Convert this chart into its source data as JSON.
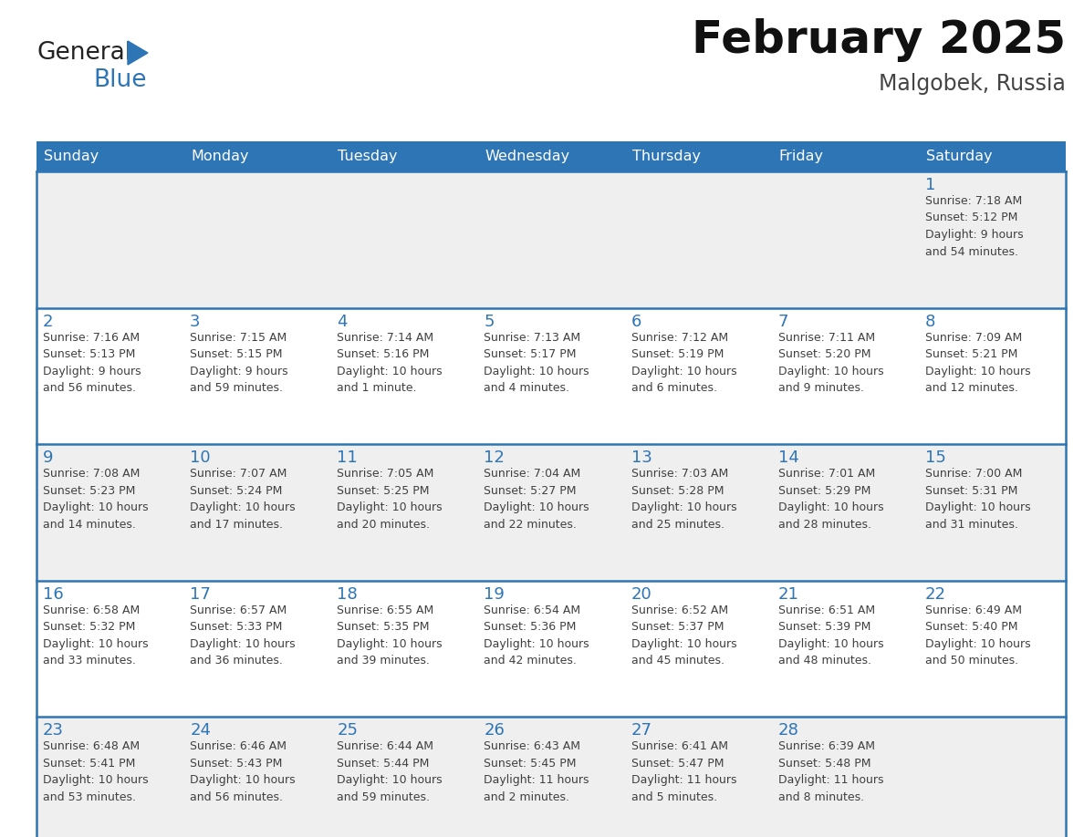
{
  "title": "February 2025",
  "subtitle": "Malgobek, Russia",
  "header_color": "#2E75B6",
  "header_text_color": "#FFFFFF",
  "bg_color": "#FFFFFF",
  "cell_bg_row0": "#EFEFEF",
  "cell_bg_row1": "#FFFFFF",
  "cell_bg_row2": "#EFEFEF",
  "cell_bg_row3": "#FFFFFF",
  "cell_bg_row4": "#EFEFEF",
  "days_of_week": [
    "Sunday",
    "Monday",
    "Tuesday",
    "Wednesday",
    "Thursday",
    "Friday",
    "Saturday"
  ],
  "day_number_color": "#2E75B6",
  "text_color": "#404040",
  "border_color": "#2E75B6",
  "logo_general_color": "#222222",
  "logo_blue_color": "#2E75B6",
  "logo_triangle_color": "#2E75B6",
  "calendar": [
    [
      null,
      null,
      null,
      null,
      null,
      null,
      {
        "day": "1",
        "sunrise": "7:18 AM",
        "sunset": "5:12 PM",
        "daylight": "9 hours\nand 54 minutes."
      }
    ],
    [
      {
        "day": "2",
        "sunrise": "7:16 AM",
        "sunset": "5:13 PM",
        "daylight": "9 hours\nand 56 minutes."
      },
      {
        "day": "3",
        "sunrise": "7:15 AM",
        "sunset": "5:15 PM",
        "daylight": "9 hours\nand 59 minutes."
      },
      {
        "day": "4",
        "sunrise": "7:14 AM",
        "sunset": "5:16 PM",
        "daylight": "10 hours\nand 1 minute."
      },
      {
        "day": "5",
        "sunrise": "7:13 AM",
        "sunset": "5:17 PM",
        "daylight": "10 hours\nand 4 minutes."
      },
      {
        "day": "6",
        "sunrise": "7:12 AM",
        "sunset": "5:19 PM",
        "daylight": "10 hours\nand 6 minutes."
      },
      {
        "day": "7",
        "sunrise": "7:11 AM",
        "sunset": "5:20 PM",
        "daylight": "10 hours\nand 9 minutes."
      },
      {
        "day": "8",
        "sunrise": "7:09 AM",
        "sunset": "5:21 PM",
        "daylight": "10 hours\nand 12 minutes."
      }
    ],
    [
      {
        "day": "9",
        "sunrise": "7:08 AM",
        "sunset": "5:23 PM",
        "daylight": "10 hours\nand 14 minutes."
      },
      {
        "day": "10",
        "sunrise": "7:07 AM",
        "sunset": "5:24 PM",
        "daylight": "10 hours\nand 17 minutes."
      },
      {
        "day": "11",
        "sunrise": "7:05 AM",
        "sunset": "5:25 PM",
        "daylight": "10 hours\nand 20 minutes."
      },
      {
        "day": "12",
        "sunrise": "7:04 AM",
        "sunset": "5:27 PM",
        "daylight": "10 hours\nand 22 minutes."
      },
      {
        "day": "13",
        "sunrise": "7:03 AM",
        "sunset": "5:28 PM",
        "daylight": "10 hours\nand 25 minutes."
      },
      {
        "day": "14",
        "sunrise": "7:01 AM",
        "sunset": "5:29 PM",
        "daylight": "10 hours\nand 28 minutes."
      },
      {
        "day": "15",
        "sunrise": "7:00 AM",
        "sunset": "5:31 PM",
        "daylight": "10 hours\nand 31 minutes."
      }
    ],
    [
      {
        "day": "16",
        "sunrise": "6:58 AM",
        "sunset": "5:32 PM",
        "daylight": "10 hours\nand 33 minutes."
      },
      {
        "day": "17",
        "sunrise": "6:57 AM",
        "sunset": "5:33 PM",
        "daylight": "10 hours\nand 36 minutes."
      },
      {
        "day": "18",
        "sunrise": "6:55 AM",
        "sunset": "5:35 PM",
        "daylight": "10 hours\nand 39 minutes."
      },
      {
        "day": "19",
        "sunrise": "6:54 AM",
        "sunset": "5:36 PM",
        "daylight": "10 hours\nand 42 minutes."
      },
      {
        "day": "20",
        "sunrise": "6:52 AM",
        "sunset": "5:37 PM",
        "daylight": "10 hours\nand 45 minutes."
      },
      {
        "day": "21",
        "sunrise": "6:51 AM",
        "sunset": "5:39 PM",
        "daylight": "10 hours\nand 48 minutes."
      },
      {
        "day": "22",
        "sunrise": "6:49 AM",
        "sunset": "5:40 PM",
        "daylight": "10 hours\nand 50 minutes."
      }
    ],
    [
      {
        "day": "23",
        "sunrise": "6:48 AM",
        "sunset": "5:41 PM",
        "daylight": "10 hours\nand 53 minutes."
      },
      {
        "day": "24",
        "sunrise": "6:46 AM",
        "sunset": "5:43 PM",
        "daylight": "10 hours\nand 56 minutes."
      },
      {
        "day": "25",
        "sunrise": "6:44 AM",
        "sunset": "5:44 PM",
        "daylight": "10 hours\nand 59 minutes."
      },
      {
        "day": "26",
        "sunrise": "6:43 AM",
        "sunset": "5:45 PM",
        "daylight": "11 hours\nand 2 minutes."
      },
      {
        "day": "27",
        "sunrise": "6:41 AM",
        "sunset": "5:47 PM",
        "daylight": "11 hours\nand 5 minutes."
      },
      {
        "day": "28",
        "sunrise": "6:39 AM",
        "sunset": "5:48 PM",
        "daylight": "11 hours\nand 8 minutes."
      },
      null
    ]
  ]
}
